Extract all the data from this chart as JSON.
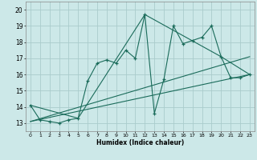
{
  "title": "",
  "xlabel": "Humidex (Indice chaleur)",
  "bg_color": "#cce8e8",
  "grid_color": "#aacccc",
  "line_color": "#1a6b5a",
  "xlim": [
    -0.5,
    23.5
  ],
  "ylim": [
    12.5,
    20.5
  ],
  "yticks": [
    13,
    14,
    15,
    16,
    17,
    18,
    19,
    20
  ],
  "xticks": [
    0,
    1,
    2,
    3,
    4,
    5,
    6,
    7,
    8,
    9,
    10,
    11,
    12,
    13,
    14,
    15,
    16,
    17,
    18,
    19,
    20,
    21,
    22,
    23
  ],
  "series": [
    [
      0,
      14.1
    ],
    [
      1,
      13.2
    ],
    [
      2,
      13.1
    ],
    [
      3,
      13.0
    ],
    [
      4,
      13.2
    ],
    [
      5,
      13.3
    ],
    [
      6,
      15.6
    ],
    [
      7,
      16.7
    ],
    [
      8,
      16.9
    ],
    [
      9,
      16.7
    ],
    [
      10,
      17.5
    ],
    [
      11,
      17.0
    ],
    [
      12,
      19.7
    ],
    [
      13,
      13.6
    ],
    [
      14,
      15.7
    ],
    [
      15,
      19.0
    ],
    [
      16,
      17.9
    ],
    [
      17,
      18.1
    ],
    [
      18,
      18.3
    ],
    [
      19,
      19.0
    ],
    [
      20,
      17.1
    ],
    [
      21,
      15.8
    ],
    [
      22,
      15.8
    ],
    [
      23,
      16.0
    ]
  ],
  "line2": [
    [
      0,
      13.1
    ],
    [
      23,
      16.0
    ]
  ],
  "line3": [
    [
      0,
      13.1
    ],
    [
      23,
      17.1
    ]
  ],
  "line4": [
    [
      0,
      14.1
    ],
    [
      5,
      13.3
    ],
    [
      12,
      19.7
    ],
    [
      20,
      17.1
    ],
    [
      23,
      16.0
    ]
  ]
}
